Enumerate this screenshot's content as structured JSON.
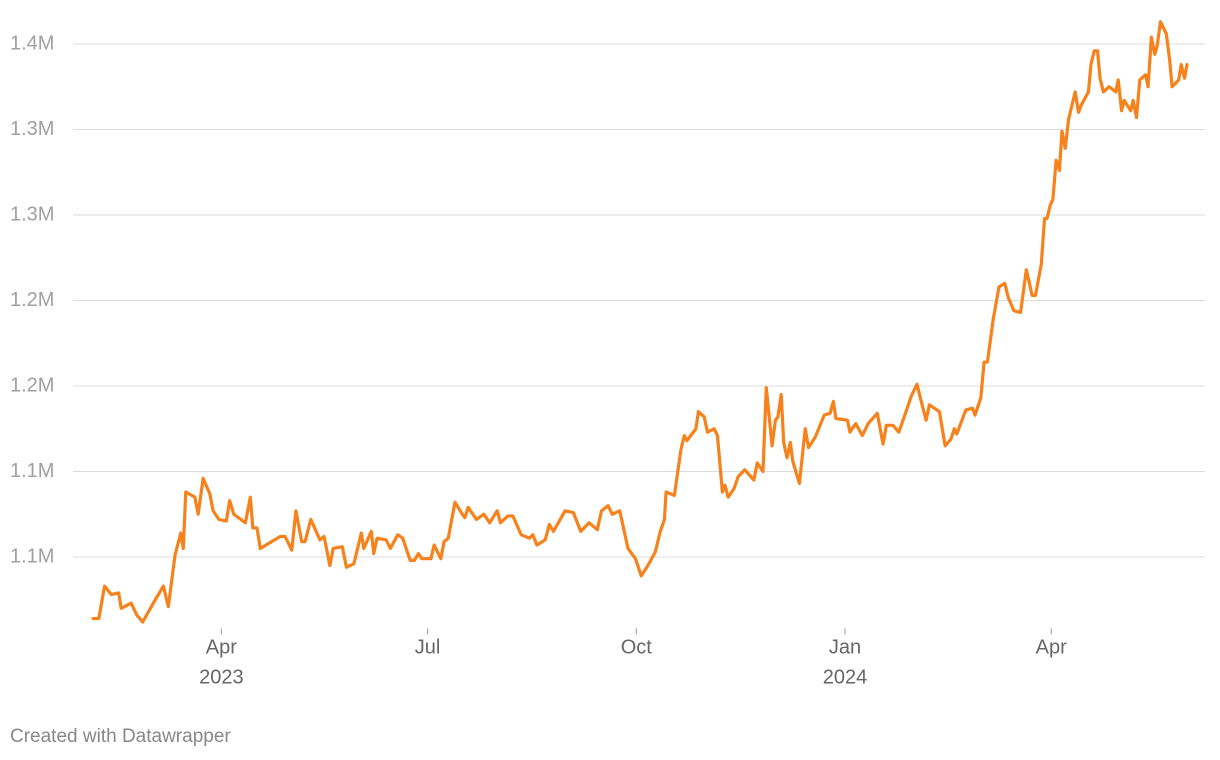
{
  "chart_data": {
    "type": "line",
    "color": "#f7821b",
    "credit": "Created with Datawrapper",
    "grid": true,
    "ylim": [
      1.01,
      1.365
    ],
    "yticks": [
      {
        "value": 1.05,
        "label": "1.1M"
      },
      {
        "value": 1.1,
        "label": "1.1M"
      },
      {
        "value": 1.15,
        "label": "1.2M"
      },
      {
        "value": 1.2,
        "label": "1.2M"
      },
      {
        "value": 1.25,
        "label": "1.3M"
      },
      {
        "value": 1.3,
        "label": "1.3M"
      },
      {
        "value": 1.35,
        "label": "1.4M"
      }
    ],
    "xlim": [
      2023.092,
      2024.413
    ],
    "xticks": [
      {
        "value": 2023.247,
        "label": "Apr",
        "year": "2023"
      },
      {
        "value": 2023.496,
        "label": "Jul"
      },
      {
        "value": 2023.748,
        "label": "Oct"
      },
      {
        "value": 2024.0,
        "label": "Jan",
        "year": "2024"
      },
      {
        "value": 2024.249,
        "label": "Apr"
      }
    ],
    "x": [
      2023.092,
      2023.099,
      2023.106,
      2023.114,
      2023.123,
      2023.126,
      2023.138,
      2023.145,
      2023.152,
      2023.166,
      2023.177,
      2023.183,
      2023.191,
      2023.198,
      2023.201,
      2023.204,
      2023.215,
      2023.219,
      2023.225,
      2023.233,
      2023.237,
      2023.244,
      2023.253,
      2023.257,
      2023.262,
      2023.276,
      2023.282,
      2023.285,
      2023.29,
      2023.294,
      2023.318,
      2023.324,
      2023.332,
      2023.337,
      2023.344,
      2023.348,
      2023.355,
      2023.366,
      2023.371,
      2023.378,
      2023.382,
      2023.393,
      2023.398,
      2023.407,
      2023.416,
      2023.419,
      2023.428,
      2023.431,
      2023.435,
      2023.446,
      2023.451,
      2023.46,
      2023.466,
      2023.475,
      2023.48,
      2023.485,
      2023.489,
      2023.5,
      2023.504,
      2023.512,
      2023.516,
      2023.521,
      2023.529,
      2023.538,
      2023.541,
      2023.545,
      2023.555,
      2023.564,
      2023.571,
      2023.58,
      2023.584,
      2023.593,
      2023.599,
      2023.609,
      2023.619,
      2023.623,
      2023.628,
      2023.638,
      2023.643,
      2023.648,
      2023.662,
      2023.672,
      2023.681,
      2023.691,
      2023.701,
      2023.706,
      2023.714,
      2023.719,
      2023.728,
      2023.738,
      2023.747,
      2023.754,
      2023.762,
      2023.771,
      2023.777,
      2023.782,
      2023.784,
      2023.794,
      2023.802,
      2023.806,
      2023.809,
      2023.82,
      2023.823,
      2023.83,
      2023.834,
      2023.842,
      2023.846,
      2023.852,
      2023.855,
      2023.859,
      2023.866,
      2023.871,
      2023.879,
      2023.89,
      2023.894,
      2023.901,
      2023.905,
      2023.912,
      2023.916,
      2023.919,
      2023.923,
      2023.926,
      2023.93,
      2023.934,
      2023.937,
      2023.945,
      2023.952,
      2023.956,
      2023.964,
      2023.975,
      2023.982,
      2023.986,
      2023.989,
      2024.003,
      2024.006,
      2024.013,
      2024.021,
      2024.028,
      2024.039,
      2024.046,
      2024.05,
      2024.058,
      2024.065,
      2024.073,
      2024.08,
      2024.087,
      2024.091,
      2024.098,
      2024.102,
      2024.114,
      2024.121,
      2024.128,
      2024.132,
      2024.135,
      2024.146,
      2024.154,
      2024.157,
      2024.164,
      2024.168,
      2024.172,
      2024.179,
      2024.186,
      2024.193,
      2024.197,
      2024.204,
      2024.212,
      2024.219,
      2024.226,
      2024.23,
      2024.237,
      2024.241,
      2024.244,
      2024.248,
      2024.251,
      2024.255,
      2024.259,
      2024.262,
      2024.266,
      2024.27,
      2024.278,
      2024.282,
      2024.285,
      2024.294,
      2024.297,
      2024.301,
      2024.305,
      2024.308,
      2024.312,
      2024.319,
      2024.327,
      2024.33,
      2024.334,
      2024.337,
      2024.345,
      2024.348,
      2024.352,
      2024.356,
      2024.363,
      2024.366,
      2024.37,
      2024.374,
      2024.377,
      2024.381,
      2024.388,
      2024.392,
      2024.395,
      2024.403,
      2024.406,
      2024.41,
      2024.413
    ],
    "values": [
      1.014,
      1.014,
      1.033,
      1.028,
      1.029,
      1.02,
      1.023,
      1.016,
      1.012,
      1.024,
      1.033,
      1.021,
      1.051,
      1.064,
      1.055,
      1.088,
      1.085,
      1.075,
      1.096,
      1.087,
      1.077,
      1.072,
      1.071,
      1.083,
      1.075,
      1.07,
      1.085,
      1.067,
      1.067,
      1.055,
      1.062,
      1.062,
      1.054,
      1.077,
      1.059,
      1.059,
      1.072,
      1.06,
      1.062,
      1.045,
      1.055,
      1.056,
      1.044,
      1.046,
      1.064,
      1.055,
      1.065,
      1.052,
      1.061,
      1.06,
      1.055,
      1.063,
      1.061,
      1.048,
      1.048,
      1.052,
      1.049,
      1.049,
      1.057,
      1.049,
      1.059,
      1.061,
      1.082,
      1.075,
      1.073,
      1.079,
      1.072,
      1.075,
      1.07,
      1.077,
      1.07,
      1.074,
      1.074,
      1.063,
      1.061,
      1.063,
      1.057,
      1.06,
      1.069,
      1.065,
      1.077,
      1.076,
      1.065,
      1.07,
      1.066,
      1.077,
      1.08,
      1.075,
      1.077,
      1.055,
      1.049,
      1.039,
      1.045,
      1.053,
      1.065,
      1.072,
      1.088,
      1.086,
      1.113,
      1.121,
      1.118,
      1.125,
      1.135,
      1.132,
      1.123,
      1.125,
      1.121,
      1.088,
      1.092,
      1.085,
      1.09,
      1.097,
      1.101,
      1.095,
      1.105,
      1.1,
      1.149,
      1.115,
      1.13,
      1.132,
      1.145,
      1.117,
      1.108,
      1.117,
      1.106,
      1.093,
      1.125,
      1.114,
      1.12,
      1.133,
      1.134,
      1.141,
      1.131,
      1.13,
      1.123,
      1.128,
      1.121,
      1.128,
      1.134,
      1.116,
      1.127,
      1.127,
      1.123,
      1.134,
      1.144,
      1.151,
      1.143,
      1.13,
      1.139,
      1.135,
      1.115,
      1.119,
      1.125,
      1.122,
      1.136,
      1.137,
      1.133,
      1.143,
      1.164,
      1.164,
      1.189,
      1.208,
      1.21,
      1.202,
      1.194,
      1.193,
      1.218,
      1.203,
      1.203,
      1.221,
      1.248,
      1.248,
      1.256,
      1.259,
      1.282,
      1.276,
      1.299,
      1.289,
      1.306,
      1.322,
      1.31,
      1.314,
      1.322,
      1.338,
      1.346,
      1.346,
      1.33,
      1.322,
      1.325,
      1.322,
      1.329,
      1.311,
      1.317,
      1.311,
      1.317,
      1.307,
      1.329,
      1.332,
      1.325,
      1.354,
      1.344,
      1.349,
      1.363,
      1.356,
      1.341,
      1.325,
      1.329,
      1.338,
      1.33,
      1.338
    ]
  }
}
